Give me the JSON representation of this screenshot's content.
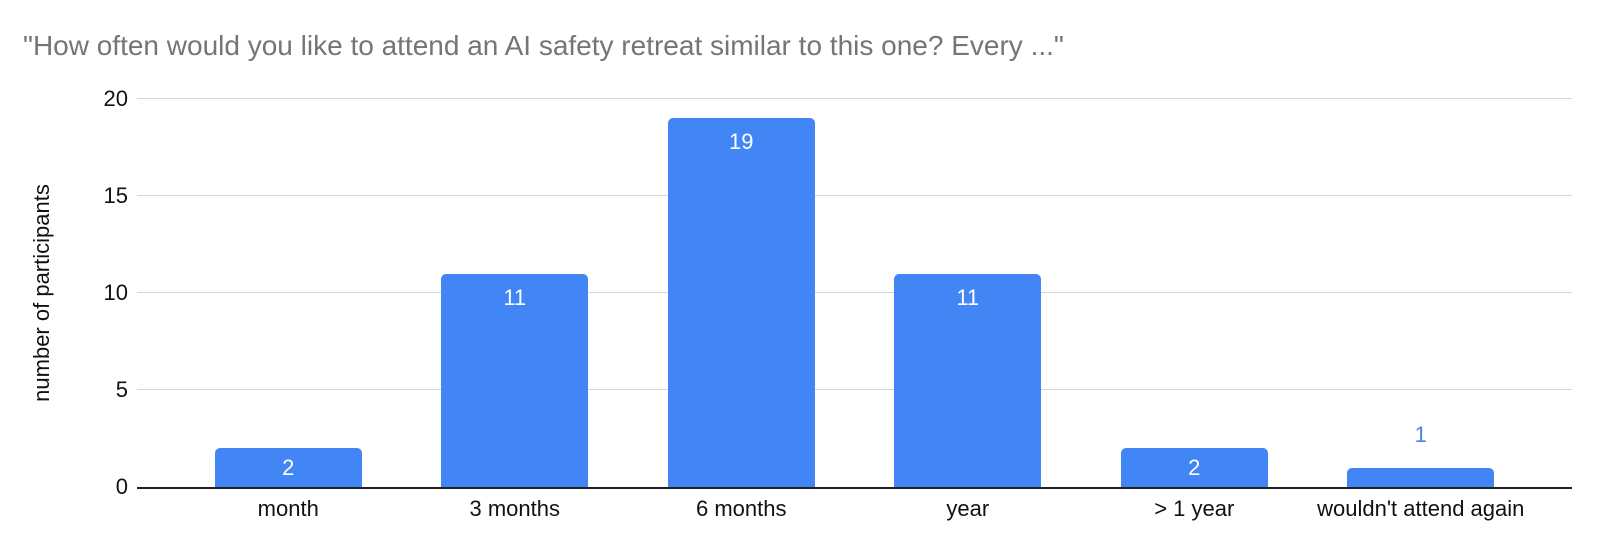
{
  "chart_data": {
    "type": "bar",
    "title": "\"How often would you like to attend an AI safety retreat similar to this one? Every ...\"",
    "xlabel": "",
    "ylabel": "number of participants",
    "categories": [
      "month",
      "3 months",
      "6 months",
      "year",
      "> 1 year",
      "wouldn't attend again"
    ],
    "values": [
      2,
      11,
      19,
      11,
      2,
      1
    ],
    "annotations": [
      {
        "text": "2",
        "placement": "inside-center"
      },
      {
        "text": "11",
        "placement": "inside-top"
      },
      {
        "text": "19",
        "placement": "inside-top"
      },
      {
        "text": "11",
        "placement": "inside-top"
      },
      {
        "text": "2",
        "placement": "inside-center"
      },
      {
        "text": "1",
        "placement": "above"
      }
    ],
    "ylim": [
      0,
      20
    ],
    "yticks": [
      0,
      5,
      10,
      15,
      20
    ],
    "grid": true,
    "legend": "none"
  },
  "colors": {
    "bar": "#4285f4",
    "title": "#757575",
    "axis_text": "#111111",
    "axis_line": "#212121",
    "grid": "#d5d5d5",
    "label_inside": "#ffffff",
    "label_above": "#4285f4"
  }
}
